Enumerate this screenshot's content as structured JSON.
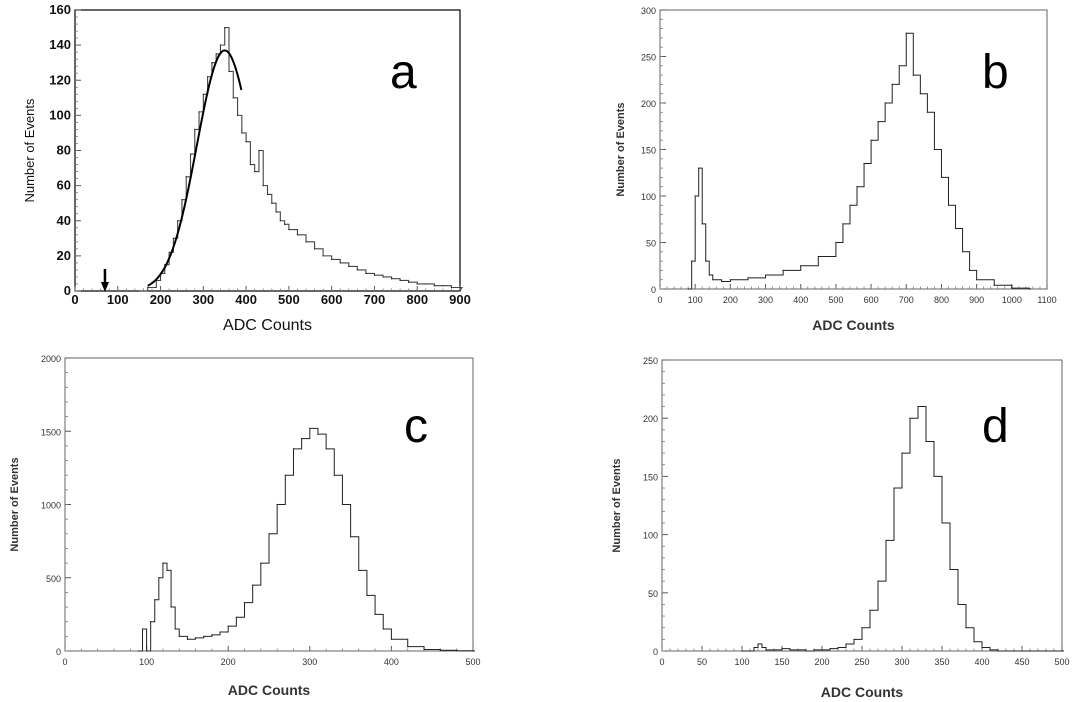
{
  "chart_data": [
    {
      "type": "area",
      "panel_label": "a",
      "xlabel": "ADC Counts",
      "ylabel": "Number of Events",
      "xlim": [
        0,
        900
      ],
      "ylim": [
        0,
        160
      ],
      "xticks": [
        "0",
        "100",
        "200",
        "300",
        "400",
        "500",
        "600",
        "700",
        "800",
        "900"
      ],
      "yticks": [
        "0",
        "20",
        "40",
        "60",
        "80",
        "100",
        "120",
        "140",
        "160"
      ],
      "fit_curve": true,
      "arrow_marker_x": 70,
      "x": [
        150,
        170,
        190,
        200,
        210,
        220,
        230,
        240,
        250,
        260,
        270,
        280,
        290,
        300,
        310,
        320,
        330,
        340,
        350,
        360,
        370,
        380,
        390,
        400,
        410,
        420,
        430,
        440,
        450,
        460,
        470,
        480,
        490,
        500,
        520,
        540,
        560,
        580,
        600,
        620,
        640,
        660,
        680,
        700,
        720,
        740,
        760,
        780,
        800,
        820,
        840,
        860,
        880,
        900
      ],
      "values": [
        0,
        2,
        6,
        10,
        15,
        22,
        30,
        40,
        52,
        65,
        78,
        92,
        102,
        112,
        122,
        130,
        135,
        140,
        150,
        125,
        110,
        100,
        90,
        85,
        72,
        68,
        80,
        60,
        55,
        50,
        45,
        40,
        38,
        35,
        32,
        28,
        24,
        20,
        18,
        16,
        14,
        12,
        10,
        9,
        8,
        7,
        6,
        5,
        4,
        4,
        3,
        3,
        2,
        2
      ]
    },
    {
      "type": "area",
      "panel_label": "b",
      "xlabel": "ADC Counts",
      "ylabel": "Number of Events",
      "xlim": [
        0,
        1100
      ],
      "ylim": [
        0,
        300
      ],
      "xticks": [
        "0",
        "100",
        "200",
        "300",
        "400",
        "500",
        "600",
        "700",
        "800",
        "900",
        "1000",
        "1100"
      ],
      "yticks": [
        "0",
        "50",
        "100",
        "150",
        "200",
        "250",
        "300"
      ],
      "x": [
        80,
        90,
        100,
        110,
        120,
        130,
        140,
        150,
        175,
        200,
        250,
        300,
        350,
        400,
        450,
        500,
        520,
        540,
        560,
        580,
        600,
        620,
        640,
        660,
        680,
        700,
        720,
        740,
        760,
        780,
        800,
        820,
        840,
        860,
        880,
        900,
        950,
        1000,
        1050
      ],
      "values": [
        0,
        30,
        100,
        130,
        70,
        30,
        15,
        10,
        8,
        10,
        12,
        15,
        20,
        25,
        35,
        50,
        70,
        90,
        110,
        135,
        160,
        180,
        200,
        220,
        240,
        275,
        230,
        210,
        190,
        150,
        120,
        90,
        65,
        40,
        20,
        10,
        4,
        1,
        0
      ]
    },
    {
      "type": "area",
      "panel_label": "c",
      "xlabel": "ADC Counts",
      "ylabel": "Number of Events",
      "xlim": [
        0,
        500
      ],
      "ylim": [
        0,
        2000
      ],
      "xticks": [
        "0",
        "100",
        "200",
        "300",
        "400",
        "500"
      ],
      "yticks": [
        "0",
        "500",
        "1000",
        "1500",
        "2000"
      ],
      "x": [
        90,
        95,
        100,
        105,
        110,
        115,
        120,
        125,
        130,
        135,
        140,
        150,
        160,
        170,
        180,
        190,
        200,
        210,
        220,
        230,
        240,
        250,
        260,
        270,
        280,
        290,
        300,
        310,
        320,
        330,
        340,
        350,
        360,
        370,
        380,
        390,
        400,
        420,
        440,
        460,
        480,
        500
      ],
      "values": [
        0,
        150,
        0,
        200,
        350,
        500,
        600,
        550,
        300,
        150,
        100,
        80,
        90,
        100,
        110,
        130,
        170,
        230,
        330,
        450,
        600,
        800,
        1000,
        1200,
        1380,
        1450,
        1520,
        1480,
        1380,
        1200,
        1000,
        780,
        550,
        380,
        250,
        150,
        80,
        30,
        10,
        5,
        2,
        0
      ]
    },
    {
      "type": "area",
      "panel_label": "d",
      "xlabel": "ADC Counts",
      "ylabel": "Number of Events",
      "xlim": [
        0,
        500
      ],
      "ylim": [
        0,
        250
      ],
      "xticks": [
        "0",
        "50",
        "100",
        "150",
        "200",
        "250",
        "300",
        "350",
        "400",
        "450",
        "500"
      ],
      "yticks": [
        "0",
        "50",
        "100",
        "150",
        "200",
        "250"
      ],
      "x": [
        100,
        110,
        115,
        120,
        125,
        130,
        140,
        150,
        160,
        170,
        180,
        190,
        200,
        210,
        220,
        230,
        240,
        250,
        260,
        270,
        280,
        290,
        300,
        310,
        320,
        330,
        340,
        350,
        360,
        370,
        380,
        390,
        400,
        410,
        420,
        440,
        460,
        480,
        500
      ],
      "values": [
        0,
        0,
        3,
        6,
        3,
        1,
        1,
        2,
        1,
        1,
        0,
        1,
        1,
        2,
        3,
        6,
        10,
        20,
        35,
        60,
        95,
        140,
        170,
        200,
        210,
        180,
        150,
        110,
        70,
        40,
        20,
        8,
        3,
        1,
        0,
        0,
        0,
        0,
        0
      ]
    }
  ]
}
